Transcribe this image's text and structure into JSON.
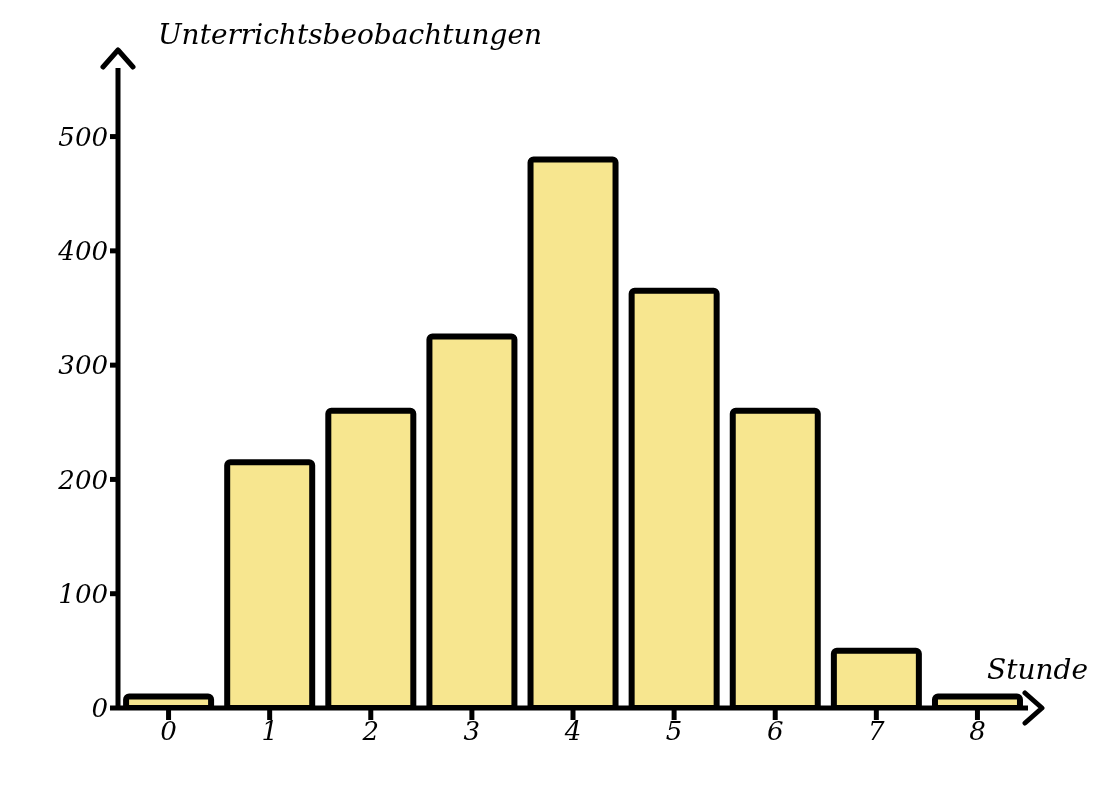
{
  "chart_data": {
    "type": "bar",
    "xlabel": "Stunde",
    "ylabel": "Unterrichtsbeobachtungen",
    "categories": [
      "0",
      "1",
      "2",
      "3",
      "4",
      "5",
      "6",
      "7",
      "8"
    ],
    "values": [
      10,
      215,
      260,
      325,
      480,
      365,
      260,
      50,
      10
    ],
    "color": "#f7e68f",
    "ylim": [
      0,
      560
    ],
    "yticks": [
      0,
      100,
      200,
      300,
      400,
      500
    ],
    "grid": false,
    "legend": false
  }
}
